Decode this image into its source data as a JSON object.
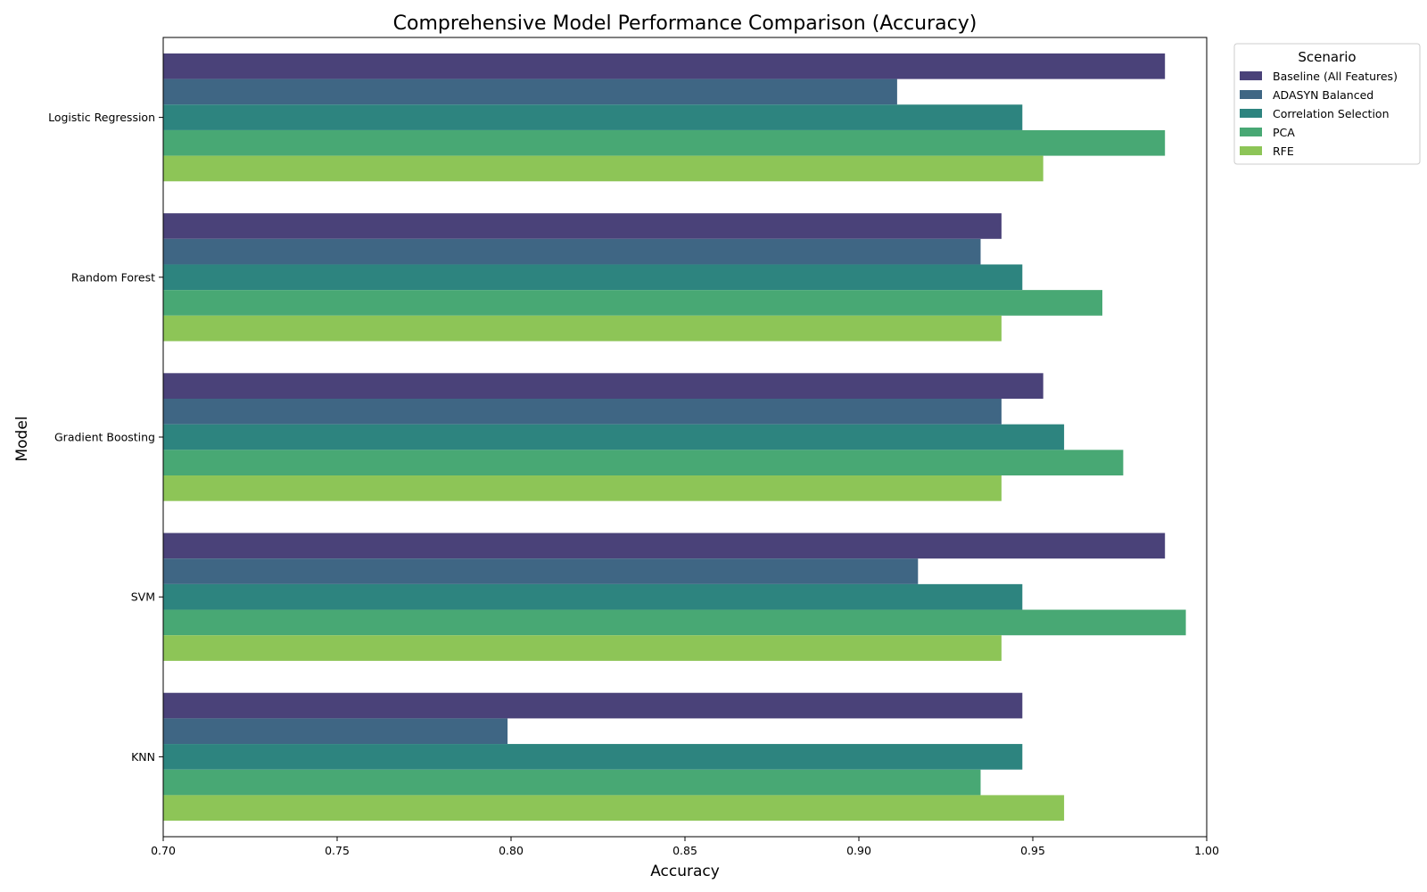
{
  "chart_data": {
    "type": "bar",
    "orientation": "horizontal",
    "title": "Comprehensive Model Performance Comparison (Accuracy)",
    "xlabel": "Accuracy",
    "ylabel": "Model",
    "xlim": [
      0.7,
      1.0
    ],
    "xticks": [
      "0.70",
      "0.75",
      "0.80",
      "0.85",
      "0.90",
      "0.95",
      "1.00"
    ],
    "categories": [
      "Logistic Regression",
      "Random Forest",
      "Gradient Boosting",
      "SVM",
      "KNN"
    ],
    "legend_title": "Scenario",
    "legend_position": "outside-top-right",
    "grid": false,
    "series": [
      {
        "name": "Baseline (All Features)",
        "color": "#4a4279",
        "values": [
          0.988,
          0.941,
          0.953,
          0.988,
          0.947
        ]
      },
      {
        "name": "ADASYN Balanced",
        "color": "#3f6684",
        "values": [
          0.911,
          0.935,
          0.941,
          0.917,
          0.799
        ]
      },
      {
        "name": "Correlation Selection",
        "color": "#2d847f",
        "values": [
          0.947,
          0.947,
          0.959,
          0.947,
          0.947
        ]
      },
      {
        "name": "PCA",
        "color": "#48a874",
        "values": [
          0.988,
          0.97,
          0.976,
          0.994,
          0.935
        ]
      },
      {
        "name": "RFE",
        "color": "#8dc557",
        "values": [
          0.953,
          0.941,
          0.941,
          0.941,
          0.959
        ]
      }
    ]
  }
}
